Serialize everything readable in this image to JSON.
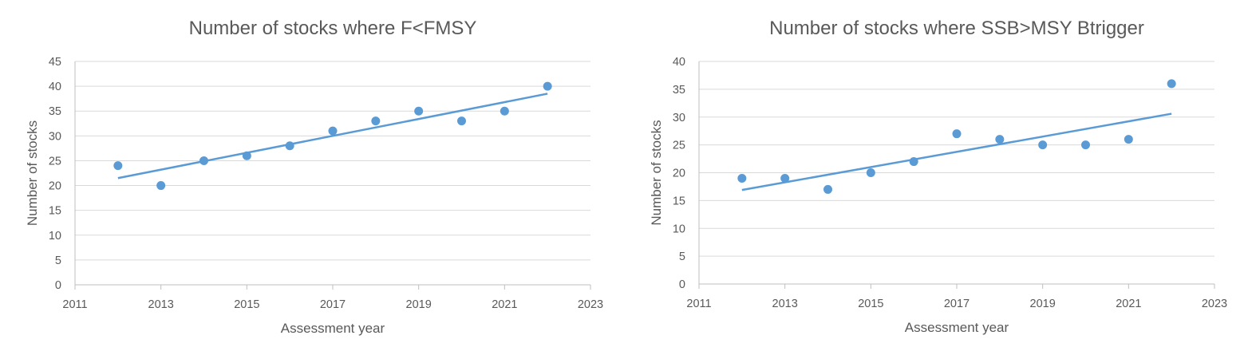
{
  "chart_data": [
    {
      "type": "scatter",
      "title": "Number of stocks where F<FMSY",
      "xlabel": "Assessment year",
      "ylabel": "Number of stocks",
      "xlim": [
        2011,
        2023
      ],
      "xticks": [
        2011,
        2013,
        2015,
        2017,
        2019,
        2021,
        2023
      ],
      "ylim": [
        0,
        45
      ],
      "yticks": [
        0,
        5,
        10,
        15,
        20,
        25,
        30,
        35,
        40,
        45
      ],
      "grid": true,
      "color": "#5b9bd5",
      "series": [
        {
          "x": [
            2012,
            2013,
            2014,
            2015,
            2016,
            2017,
            2018,
            2019,
            2020,
            2021,
            2022
          ],
          "y": [
            24,
            20,
            25,
            26,
            28,
            31,
            33,
            35,
            33,
            35,
            40
          ]
        }
      ],
      "trendline": {
        "type": "linear",
        "x": [
          2012,
          2022
        ],
        "y": [
          21.5,
          38.5
        ]
      }
    },
    {
      "type": "scatter",
      "title": "Number of stocks where SSB>MSY Btrigger",
      "xlabel": "Assessment year",
      "ylabel": "Number of stocks",
      "xlim": [
        2011,
        2023
      ],
      "xticks": [
        2011,
        2013,
        2015,
        2017,
        2019,
        2021,
        2023
      ],
      "ylim": [
        0,
        40
      ],
      "yticks": [
        0,
        5,
        10,
        15,
        20,
        25,
        30,
        35,
        40
      ],
      "grid": true,
      "color": "#5b9bd5",
      "series": [
        {
          "x": [
            2012,
            2013,
            2014,
            2015,
            2016,
            2017,
            2018,
            2019,
            2020,
            2021,
            2022
          ],
          "y": [
            19,
            19,
            17,
            20,
            22,
            27,
            26,
            25,
            25,
            26,
            36
          ]
        }
      ],
      "trendline": {
        "type": "linear",
        "x": [
          2012,
          2022
        ],
        "y": [
          16.9,
          30.6
        ]
      }
    }
  ]
}
